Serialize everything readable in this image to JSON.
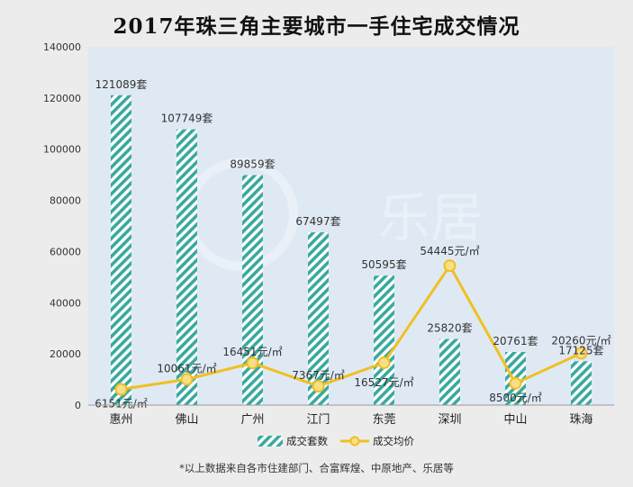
{
  "title": "2017年珠三角主要城市一手住宅成交情况",
  "footnote": "*以上数据来自各市住建部门、合富辉煌、中原地产、乐居等",
  "watermark": "乐居",
  "colors": {
    "bar": "#3aa9a0",
    "line": "#f0c020",
    "marker_fill": "#f7df8a",
    "plot_bg": "#dfe9f4",
    "label": "#333333"
  },
  "chart_data": {
    "type": "bar",
    "categories": [
      "惠州",
      "佛山",
      "广州",
      "江门",
      "东莞",
      "深圳",
      "中山",
      "珠海"
    ],
    "ylim": [
      0,
      140000
    ],
    "yticks": [
      "0",
      "20000",
      "40000",
      "60000",
      "80000",
      "100000",
      "120000",
      "140000"
    ],
    "legend_position": "bottom",
    "series": [
      {
        "name": "成交套数",
        "type": "bar",
        "values": [
          121089,
          107749,
          89859,
          67497,
          50595,
          25820,
          20761,
          17125
        ],
        "labels": [
          "121089套",
          "107749套",
          "89859套",
          "67497套",
          "50595套",
          "25820套",
          "20761套",
          "17125套"
        ]
      },
      {
        "name": "成交均价",
        "type": "line",
        "values": [
          6151,
          10061,
          16451,
          7367,
          16527,
          54445,
          8500,
          20260
        ],
        "labels": [
          "6151元/㎡",
          "10061元/㎡",
          "16451元/㎡",
          "7367元/㎡",
          "16527元/㎡",
          "54445元/㎡",
          "8500元/㎡",
          "20260元/㎡"
        ]
      }
    ]
  }
}
